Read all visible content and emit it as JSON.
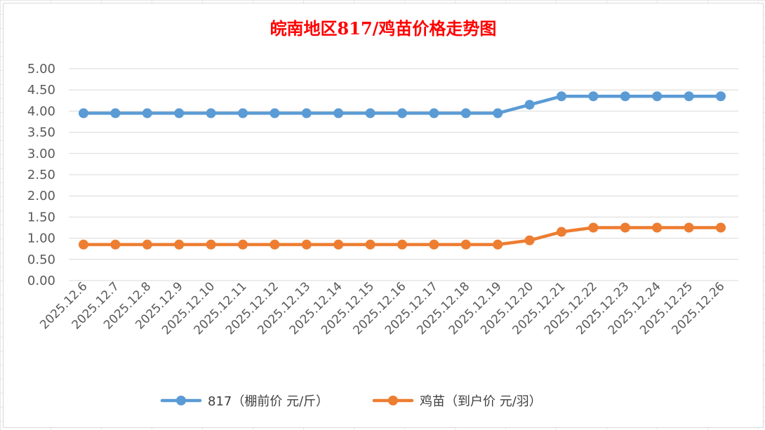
{
  "chart_data": {
    "type": "line",
    "title": "皖南地区817/鸡苗价格走势图",
    "categories": [
      "2025.12.6",
      "2025.12.7",
      "2025.12.8",
      "2025.12.9",
      "2025.12.10",
      "2025.12.11",
      "2025.12.12",
      "2025.12.13",
      "2025.12.14",
      "2025.12.15",
      "2025.12.16",
      "2025.12.17",
      "2025.12.18",
      "2025.12.19",
      "2025.12.20",
      "2025.12.21",
      "2025.12.22",
      "2025.12.23",
      "2025.12.24",
      "2025.12.25",
      "2025.12.26"
    ],
    "series": [
      {
        "name": "817（棚前价 元/斤）",
        "color": "#5b9bd5",
        "values": [
          3.95,
          3.95,
          3.95,
          3.95,
          3.95,
          3.95,
          3.95,
          3.95,
          3.95,
          3.95,
          3.95,
          3.95,
          3.95,
          3.95,
          4.15,
          4.35,
          4.35,
          4.35,
          4.35,
          4.35,
          4.35
        ]
      },
      {
        "name": "鸡苗（到户价 元/羽）",
        "color": "#ed7d31",
        "values": [
          0.85,
          0.85,
          0.85,
          0.85,
          0.85,
          0.85,
          0.85,
          0.85,
          0.85,
          0.85,
          0.85,
          0.85,
          0.85,
          0.85,
          0.95,
          1.15,
          1.25,
          1.25,
          1.25,
          1.25,
          1.25
        ]
      }
    ],
    "ylim": [
      0,
      5
    ],
    "yticks": [
      "0.00",
      "0.50",
      "1.00",
      "1.50",
      "2.00",
      "2.50",
      "3.00",
      "3.50",
      "4.00",
      "4.50",
      "5.00"
    ],
    "grid": true,
    "legend": "bottom"
  }
}
